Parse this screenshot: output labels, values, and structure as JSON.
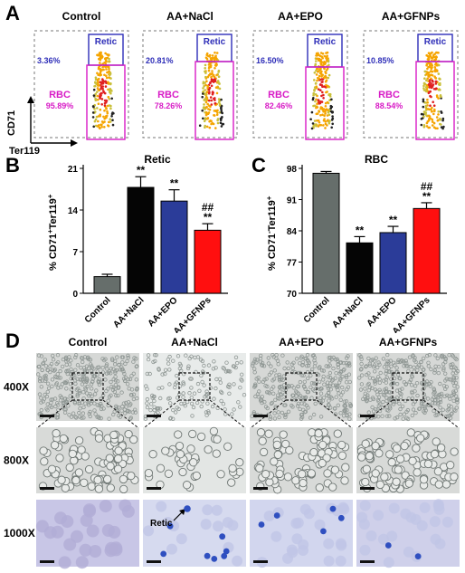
{
  "panel_labels": {
    "a": "A",
    "b": "B",
    "c": "C",
    "d": "D"
  },
  "flow": {
    "groups": [
      {
        "title": "Control",
        "retic_pct": "3.36%",
        "rbc_pct": "95.89%"
      },
      {
        "title": "AA+NaCl",
        "retic_pct": "20.81%",
        "rbc_pct": "78.26%"
      },
      {
        "title": "AA+EPO",
        "retic_pct": "16.50%",
        "rbc_pct": "82.46%"
      },
      {
        "title": "AA+GFNPs",
        "retic_pct": "10.85%",
        "rbc_pct": "88.54%"
      }
    ],
    "retic_label": "Retic",
    "rbc_label": "RBC",
    "y_axis": "CD71",
    "x_axis": "Ter119",
    "colors": {
      "retic": "#2e2eb8",
      "rbc": "#d81bc6"
    }
  },
  "chart_data": [
    {
      "type": "bar",
      "title": "Retic",
      "ylabel": "% CD71+Ter119+",
      "categories": [
        "Control",
        "AA+NaCl",
        "AA+EPO",
        "AA+GFNPs"
      ],
      "values": [
        2.8,
        17.8,
        15.5,
        10.6
      ],
      "errors": [
        0.4,
        1.8,
        1.9,
        1.1
      ],
      "annotations": [
        "",
        "**",
        "**",
        "##\n**"
      ],
      "ylim": [
        0,
        21
      ],
      "yticks": [
        0,
        7,
        14,
        21
      ],
      "colors": [
        "#666e6b",
        "#050505",
        "#2b3c99",
        "#ff0f0f"
      ]
    },
    {
      "type": "bar",
      "title": "RBC",
      "ylabel": "% CD71-Ter119+",
      "categories": [
        "Control",
        "AA+NaCl",
        "AA+EPO",
        "AA+GFNPs"
      ],
      "values": [
        96.9,
        81.3,
        83.6,
        89.0
      ],
      "errors": [
        0.4,
        1.4,
        1.4,
        1.3
      ],
      "annotations": [
        "",
        "**",
        "**",
        "##\n**"
      ],
      "ylim": [
        70,
        98
      ],
      "yticks": [
        70,
        77,
        84,
        91,
        98
      ],
      "colors": [
        "#666e6b",
        "#050505",
        "#2b3c99",
        "#ff0f0f"
      ]
    }
  ],
  "micro": {
    "columns": [
      "Control",
      "AA+NaCl",
      "AA+EPO",
      "AA+GFNPs"
    ],
    "rows": [
      "400X",
      "800X",
      "1000X"
    ],
    "retic_arrow_label": "Retic"
  }
}
